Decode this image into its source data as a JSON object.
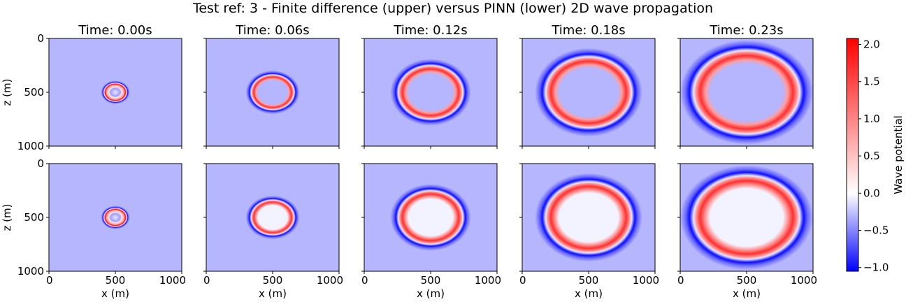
{
  "chart_data": {
    "type": "heatmap",
    "title": "Test ref: 3 - Finite difference (upper) versus PINN (lower) 2D wave propagation",
    "colorbar": {
      "label": "Wave potential",
      "range": [
        -1.05,
        2.08
      ],
      "ticks": [
        "2.0",
        "1.5",
        "1.0",
        "0.5",
        "0.0",
        "−0.5",
        "−1.0"
      ],
      "tick_values": [
        2.0,
        1.5,
        1.0,
        0.5,
        0.0,
        -0.5,
        -1.0
      ],
      "colormap": "bwr",
      "colors": {
        "low": "#0000ff",
        "mid": "#ffffff",
        "high": "#ff0000"
      }
    },
    "x_axis": {
      "label": "x (m)",
      "range": [
        0,
        1000
      ],
      "ticks": [
        "0",
        "500",
        "1000"
      ]
    },
    "z_axis": {
      "label": "z (m)",
      "range": [
        0,
        1000
      ],
      "ticks": [
        "0",
        "500",
        "1000"
      ],
      "inverted": true
    },
    "source_center": {
      "x": 500,
      "z": 500
    },
    "rows": [
      {
        "method": "Finite difference (upper)"
      },
      {
        "method": "PINN (lower)"
      }
    ],
    "panels": [
      {
        "title": "Time: 0.00s",
        "time": 0.0,
        "wavefront_radius_x": 80,
        "wavefront_radius_z": 80
      },
      {
        "title": "Time: 0.06s",
        "time": 0.06,
        "wavefront_radius_x": 150,
        "wavefront_radius_z": 150
      },
      {
        "title": "Time: 0.12s",
        "time": 0.12,
        "wavefront_radius_x": 225,
        "wavefront_radius_z": 230
      },
      {
        "title": "Time: 0.18s",
        "time": 0.18,
        "wavefront_radius_x": 300,
        "wavefront_radius_z": 305
      },
      {
        "title": "Time: 0.23s",
        "time": 0.23,
        "wavefront_radius_x": 370,
        "wavefront_radius_z": 360
      }
    ],
    "background_value": -0.3
  }
}
